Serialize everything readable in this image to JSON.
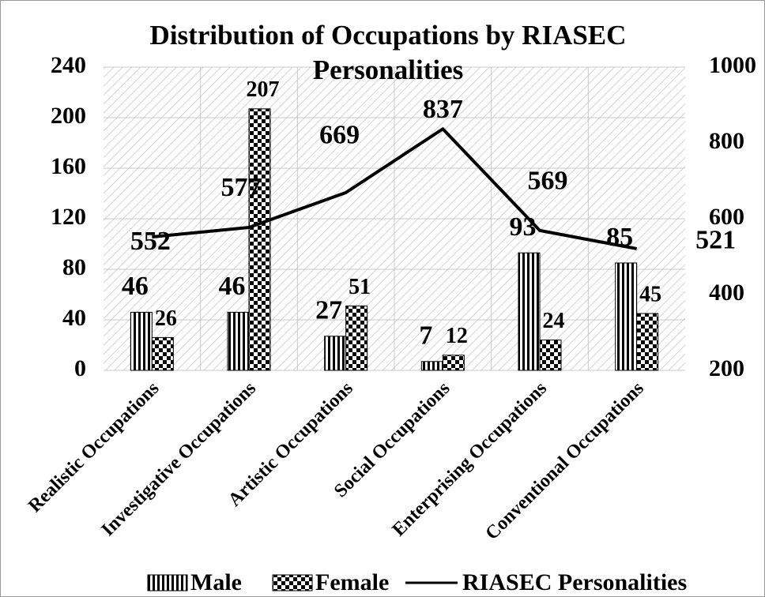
{
  "chart_data": {
    "type": "bar_line",
    "title": "Distribution of Occupations by RIASEC Personalities",
    "categories": [
      "Realistic Occupations",
      "Investigative Occupations",
      "Artistic Occupations",
      "Social Occupations",
      "Enterprising Occupations",
      "Conventional Occupations"
    ],
    "series": [
      {
        "name": "Male",
        "color": "#000000",
        "values": [
          46,
          46,
          27,
          7,
          93,
          85
        ]
      },
      {
        "name": "Female",
        "color": "#000000",
        "values": [
          26,
          207,
          51,
          12,
          24,
          45
        ]
      },
      {
        "name": "RIASEC Personalities",
        "color": "#000000",
        "axis": "y2",
        "values": [
          552,
          577,
          669,
          837,
          569,
          521
        ]
      }
    ],
    "ylim": [
      0,
      240
    ],
    "yticks": [
      0,
      40,
      80,
      120,
      160,
      200,
      240
    ],
    "y2lim": [
      200,
      1000
    ],
    "y2ticks": [
      200,
      400,
      600,
      800,
      1000
    ],
    "grid": true,
    "legend": "bottom"
  }
}
